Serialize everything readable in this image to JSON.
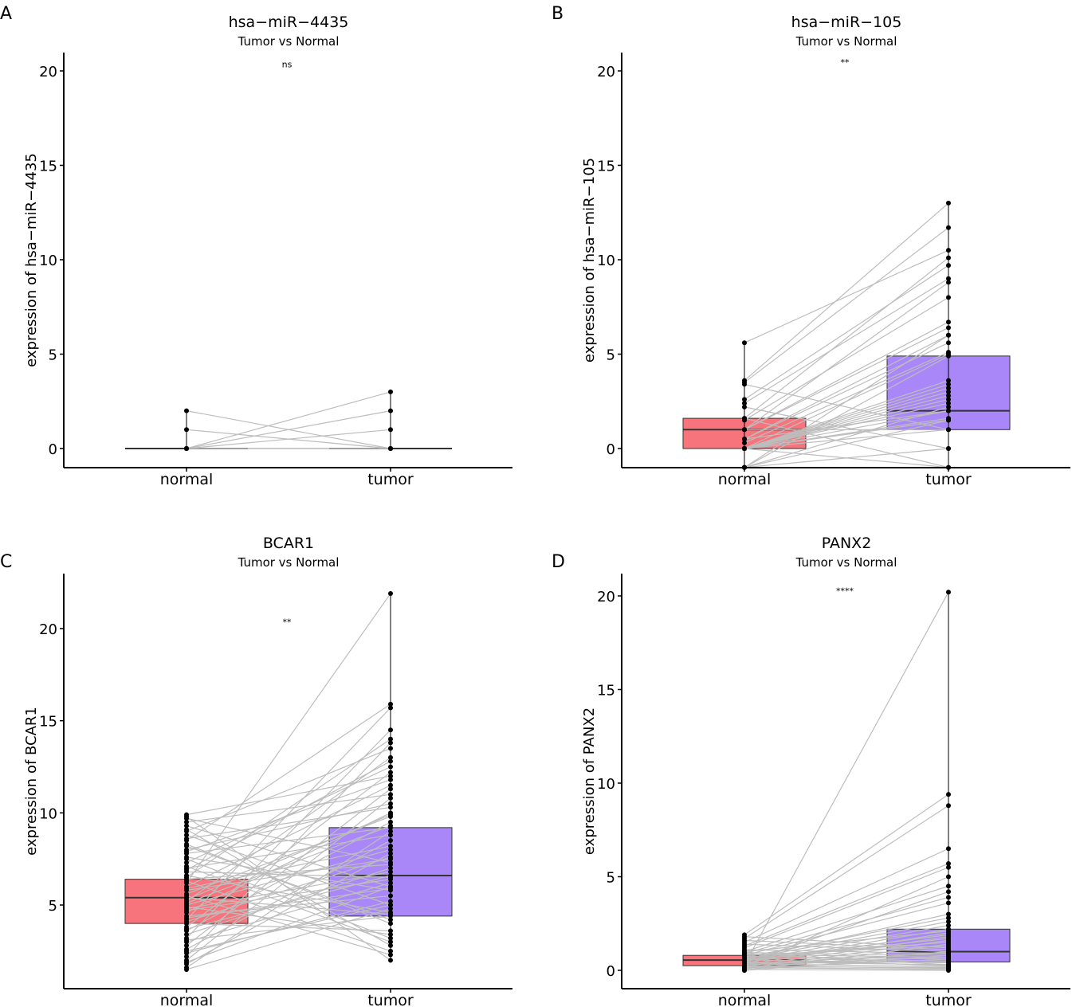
{
  "chart_data": [
    {
      "panel": "A",
      "type": "box",
      "title": "hsa−miR−4435",
      "subtitle": "Tumor vs Normal",
      "ylabel": "expression of hsa−miR−4435",
      "categories": [
        "normal",
        "tumor"
      ],
      "ylim": [
        -1,
        21
      ],
      "yticks": [
        0,
        5,
        10,
        15,
        20
      ],
      "ytick_labels": [
        "0",
        "5",
        "10",
        "15",
        "20"
      ],
      "significance": "ns",
      "significance_y": 20.2,
      "boxes": [
        {
          "category": "normal",
          "q1": 0,
          "median": 0,
          "q3": 0,
          "color": "#f8747c"
        },
        {
          "category": "tumor",
          "q1": 0,
          "median": 0,
          "q3": 0,
          "color": "#a987f8"
        }
      ],
      "pairs": [
        [
          2,
          0
        ],
        [
          1,
          0
        ],
        [
          0,
          3
        ],
        [
          0,
          2
        ],
        [
          0,
          1
        ],
        [
          0,
          0
        ],
        [
          0,
          0
        ],
        [
          0,
          0
        ]
      ]
    },
    {
      "panel": "B",
      "type": "box",
      "title": "hsa−miR−105",
      "subtitle": "Tumor vs Normal",
      "ylabel": "expression of hsa−miR−105",
      "categories": [
        "normal",
        "tumor"
      ],
      "ylim": [
        -1,
        21
      ],
      "yticks": [
        0,
        5,
        10,
        15,
        20
      ],
      "ytick_labels": [
        "0",
        "5",
        "10",
        "15",
        "20"
      ],
      "significance": "**",
      "significance_y": 20.3,
      "boxes": [
        {
          "category": "normal",
          "q1": 0,
          "median": 1,
          "q3": 1.6,
          "color": "#f8747c"
        },
        {
          "category": "tumor",
          "q1": 1,
          "median": 2,
          "q3": 4.9,
          "color": "#a987f8"
        }
      ],
      "pairs": [
        [
          5.6,
          10.5
        ],
        [
          3.6,
          13.0
        ],
        [
          3.5,
          11.7
        ],
        [
          2.6,
          9.7
        ],
        [
          2.4,
          9.0
        ],
        [
          1.6,
          10.1
        ],
        [
          1.5,
          8.0
        ],
        [
          1.0,
          8.8
        ],
        [
          1.0,
          6.7
        ],
        [
          1.0,
          6.4
        ],
        [
          0.5,
          6.0
        ],
        [
          0.5,
          5.6
        ],
        [
          0.3,
          5.1
        ],
        [
          0,
          5.0
        ],
        [
          0,
          3.6
        ],
        [
          0,
          3.4
        ],
        [
          0,
          3.2
        ],
        [
          0,
          3.0
        ],
        [
          0,
          2.8
        ],
        [
          0,
          2.6
        ],
        [
          0,
          2.4
        ],
        [
          0,
          2.0
        ],
        [
          0,
          1.6
        ],
        [
          0,
          1.5
        ],
        [
          0,
          1.0
        ],
        [
          -1,
          4.9
        ],
        [
          -1,
          2.2
        ],
        [
          3.4,
          1.0
        ],
        [
          2.2,
          0
        ],
        [
          1.6,
          -1
        ],
        [
          1.0,
          1.0
        ],
        [
          0.5,
          2.0
        ],
        [
          -1,
          1.5
        ],
        [
          -1,
          0
        ],
        [
          0,
          -1
        ],
        [
          -1,
          6.0
        ]
      ]
    },
    {
      "panel": "C",
      "type": "box",
      "title": "BCAR1",
      "subtitle": "Tumor vs Normal",
      "ylabel": "expression of BCAR1",
      "categories": [
        "normal",
        "tumor"
      ],
      "ylim": [
        0.8,
        22.8
      ],
      "yticks": [
        5,
        10,
        15,
        20
      ],
      "ytick_labels": [
        "5",
        "10",
        "15",
        "20"
      ],
      "significance": "**",
      "significance_y": 20.2,
      "boxes": [
        {
          "category": "normal",
          "q1": 4.0,
          "median": 5.4,
          "q3": 6.4,
          "color": "#f8747c"
        },
        {
          "category": "tumor",
          "q1": 4.4,
          "median": 6.6,
          "q3": 9.2,
          "color": "#a987f8"
        }
      ],
      "pairs": [
        [
          9.9,
          12.0
        ],
        [
          9.7,
          7.3
        ],
        [
          9.5,
          11.0
        ],
        [
          9.3,
          6.0
        ],
        [
          9.0,
          13.5
        ],
        [
          8.8,
          5.0
        ],
        [
          8.5,
          15.9
        ],
        [
          8.3,
          4.0
        ],
        [
          8.0,
          10.5
        ],
        [
          7.8,
          9.2
        ],
        [
          7.5,
          3.2
        ],
        [
          7.3,
          12.5
        ],
        [
          7.0,
          8.8
        ],
        [
          6.8,
          6.5
        ],
        [
          6.5,
          14.0
        ],
        [
          6.3,
          2.5
        ],
        [
          6.2,
          21.9
        ],
        [
          6.0,
          11.5
        ],
        [
          5.8,
          7.5
        ],
        [
          5.6,
          9.8
        ],
        [
          5.4,
          4.5
        ],
        [
          5.2,
          13.0
        ],
        [
          5.0,
          8.0
        ],
        [
          4.8,
          6.8
        ],
        [
          4.6,
          10.0
        ],
        [
          4.4,
          5.5
        ],
        [
          4.2,
          15.7
        ],
        [
          4.0,
          3.6
        ],
        [
          3.8,
          12.2
        ],
        [
          3.6,
          9.5
        ],
        [
          3.4,
          7.0
        ],
        [
          3.2,
          14.5
        ],
        [
          3.0,
          6.2
        ],
        [
          2.8,
          11.3
        ],
        [
          2.6,
          8.5
        ],
        [
          2.4,
          5.2
        ],
        [
          2.2,
          13.8
        ],
        [
          2.0,
          10.8
        ],
        [
          1.8,
          7.8
        ],
        [
          1.6,
          9.0
        ],
        [
          1.5,
          4.8
        ],
        [
          9.8,
          2.0
        ],
        [
          9.1,
          2.8
        ],
        [
          8.2,
          4.2
        ],
        [
          7.6,
          5.8
        ],
        [
          7.1,
          3.0
        ],
        [
          6.6,
          4.6
        ],
        [
          5.5,
          2.3
        ],
        [
          4.9,
          3.4
        ],
        [
          4.3,
          5.9
        ],
        [
          3.7,
          6.6
        ],
        [
          3.1,
          4.4
        ],
        [
          2.5,
          5.0
        ],
        [
          1.9,
          6.0
        ],
        [
          6.4,
          7.2
        ],
        [
          5.9,
          8.2
        ],
        [
          5.1,
          9.3
        ],
        [
          4.7,
          6.4
        ],
        [
          4.1,
          7.6
        ],
        [
          8.6,
          10.3
        ],
        [
          7.9,
          11.8
        ],
        [
          6.9,
          12.8
        ],
        [
          5.3,
          9.9
        ]
      ]
    },
    {
      "panel": "D",
      "type": "box",
      "title": "PANX2",
      "subtitle": "Tumor vs Normal",
      "ylabel": "expression of PANX2",
      "categories": [
        "normal",
        "tumor"
      ],
      "ylim": [
        -0.9,
        21.1
      ],
      "yticks": [
        0,
        5,
        10,
        15,
        20
      ],
      "ytick_labels": [
        "0",
        "5",
        "10",
        "15",
        "20"
      ],
      "significance": "****",
      "significance_y": 20.1,
      "boxes": [
        {
          "category": "normal",
          "q1": 0.25,
          "median": 0.55,
          "q3": 0.8,
          "color": "#f8747c"
        },
        {
          "category": "tumor",
          "q1": 0.45,
          "median": 1.0,
          "q3": 2.2,
          "color": "#a987f8"
        }
      ],
      "pairs": [
        [
          0.3,
          20.2
        ],
        [
          1.9,
          9.4
        ],
        [
          1.7,
          8.8
        ],
        [
          1.5,
          6.5
        ],
        [
          1.3,
          5.7
        ],
        [
          1.2,
          5.5
        ],
        [
          1.0,
          4.5
        ],
        [
          0.9,
          3.9
        ],
        [
          0.8,
          3.6
        ],
        [
          0.7,
          2.8
        ],
        [
          0.6,
          2.6
        ],
        [
          0.5,
          2.4
        ],
        [
          0.4,
          2.2
        ],
        [
          0.3,
          2.0
        ],
        [
          0.2,
          1.8
        ],
        [
          0.1,
          1.6
        ],
        [
          0.0,
          1.4
        ],
        [
          1.8,
          1.2
        ],
        [
          1.6,
          1.1
        ],
        [
          1.4,
          1.0
        ],
        [
          1.1,
          0.9
        ],
        [
          0.95,
          0.8
        ],
        [
          0.85,
          0.7
        ],
        [
          0.75,
          0.6
        ],
        [
          0.65,
          0.5
        ],
        [
          0.55,
          0.4
        ],
        [
          0.45,
          0.3
        ],
        [
          0.35,
          0.2
        ],
        [
          0.25,
          0.1
        ],
        [
          0.15,
          0.05
        ],
        [
          0.05,
          0.0
        ],
        [
          0.6,
          3.0
        ],
        [
          0.4,
          4.2
        ],
        [
          0.2,
          5.0
        ],
        [
          0.7,
          1.5
        ],
        [
          0.5,
          1.9
        ],
        [
          0.3,
          0.95
        ],
        [
          0.1,
          0.6
        ],
        [
          0.9,
          0.3
        ],
        [
          1.0,
          2.1
        ],
        [
          0.8,
          1.3
        ],
        [
          0.0,
          0.8
        ],
        [
          0.2,
          0.15
        ],
        [
          0.4,
          0.45
        ],
        [
          0.6,
          0.25
        ],
        [
          0.3,
          0.7
        ],
        [
          0.1,
          1.0
        ],
        [
          0.5,
          1.7
        ]
      ]
    }
  ]
}
